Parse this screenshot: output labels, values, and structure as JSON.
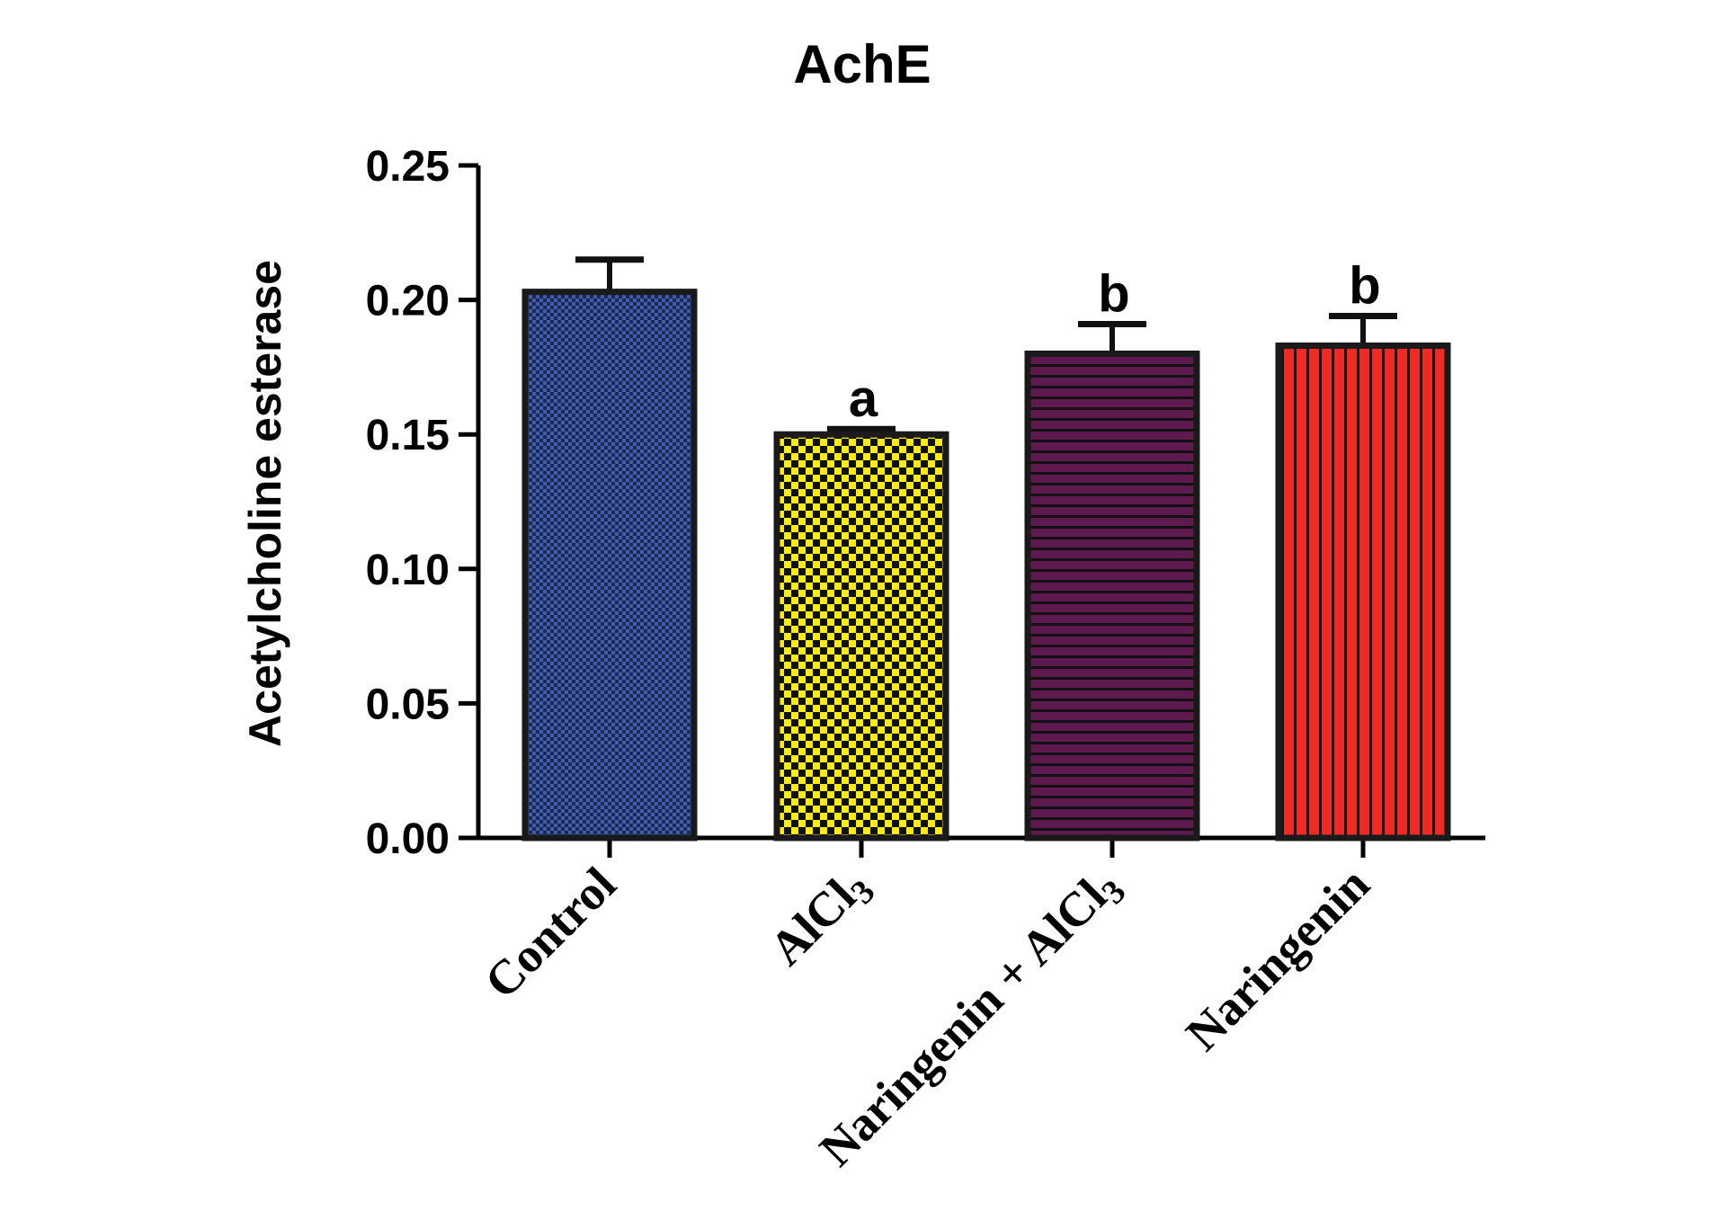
{
  "chart_data": {
    "type": "bar",
    "title": "AchE",
    "xlabel": "",
    "ylabel": "Acetylcholine esterase",
    "ylim": [
      0,
      0.25
    ],
    "yticks": [
      "0.00",
      "0.05",
      "0.10",
      "0.15",
      "0.20",
      "0.25"
    ],
    "categories": [
      {
        "main": "Control",
        "sub": ""
      },
      {
        "main": "AlCl",
        "sub": "3"
      },
      {
        "main": "Naringenin + AlCl",
        "sub": "3"
      },
      {
        "main": "Naringenin",
        "sub": ""
      }
    ],
    "values": [
      0.203,
      0.15,
      0.18,
      0.183
    ],
    "errors": [
      0.012,
      0.002,
      0.011,
      0.011
    ],
    "significance": [
      "",
      "a",
      "b",
      "b"
    ],
    "colors": [
      "#3F5BA9",
      "#F7EC13",
      "#5E1A4E",
      "#EE2A24"
    ],
    "patterns": [
      "fine-checker",
      "checker",
      "horizontal-stripes",
      "vertical-stripes"
    ],
    "grid": false,
    "legend": "none"
  }
}
